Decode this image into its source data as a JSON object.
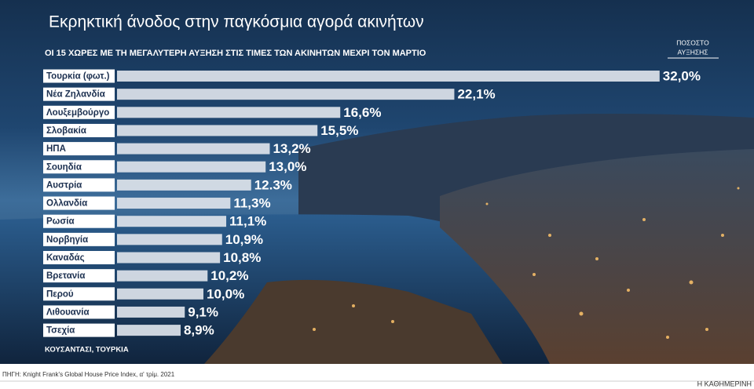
{
  "chart_data": {
    "type": "bar",
    "orientation": "horizontal",
    "title": "Εκρηκτική άνοδος στην παγκόσμια αγορά ακινήτων",
    "subtitle": "ΟΙ 15 ΧΩΡΕΣ ΜΕ ΤΗ ΜΕΓΑΛΥΤΕΡΗ ΑΥΞΗΣΗ ΣΤΙΣ ΤΙΜΕΣ ΤΩΝ ΑΚΙΝΗΤΩΝ ΜΕΧΡΙ ΤΟΝ ΜΑΡΤΙΟ",
    "value_header": [
      "ΠΟΣΟΣΤΟ",
      "ΑΥΞΗΣΗΣ"
    ],
    "categories": [
      "Τουρκία (φωτ.)",
      "Νέα Ζηλανδία",
      "Λουξεμβούργο",
      "Σλοβακία",
      "ΗΠΑ",
      "Σουηδία",
      "Αυστρία",
      "Ολλανδία",
      "Ρωσία",
      "Νορβηγία",
      "Καναδάς",
      "Βρετανία",
      "Περού",
      "Λιθουανία",
      "Τσεχία"
    ],
    "values": [
      32.0,
      22.1,
      16.6,
      15.5,
      13.2,
      13.0,
      12.3,
      11.3,
      11.1,
      10.9,
      10.8,
      10.2,
      10.0,
      9.1,
      8.9
    ],
    "value_labels": [
      "32,0%",
      "22,1%",
      "16,6%",
      "15,5%",
      "13,2%",
      "13,0%",
      "12.3%",
      "11,3%",
      "11,1%",
      "10,9%",
      "10,8%",
      "10,2%",
      "10,0%",
      "9,1%",
      "8,9%"
    ],
    "color": "#dde3ea",
    "photo_caption": "ΚΟΥΣΑΝΤΑΣΙ, ΤΟΥΡΚΙΑ",
    "source": "ΠΗΓΗ: Knight Frank's Global House Price Index, α' τρίμ. 2021",
    "publisher": "Η ΚΑΘΗΜΕΡΙΝΗ"
  }
}
